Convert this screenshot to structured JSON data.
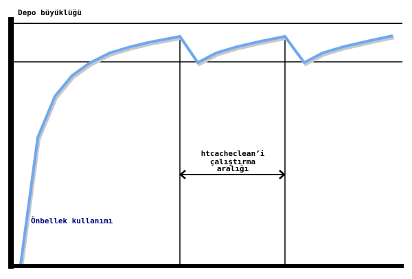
{
  "y_axis_label": "Depo büyüklüğü",
  "curve_label": "Önbellek kullanımı",
  "interval_label": [
    "htcacheclean’i",
    "çalıştırma",
    "aralığı"
  ],
  "colors": {
    "curve": "#6fa8f0",
    "axes": "#000000",
    "curve_label": "#000080"
  }
}
